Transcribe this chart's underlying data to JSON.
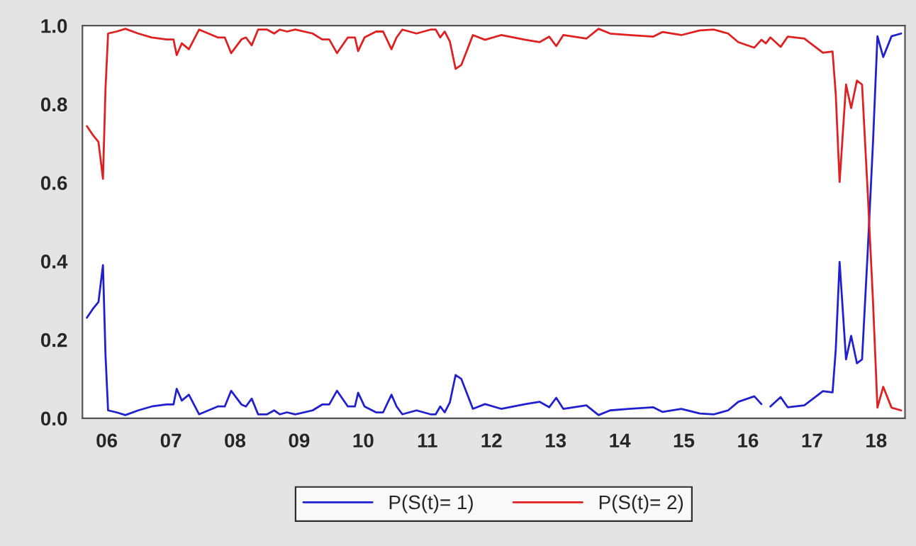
{
  "chart_data": {
    "type": "line",
    "x": [
      2005.69,
      2005.78,
      2005.87,
      2005.94,
      2005.98,
      2006.02,
      2006.15,
      2006.29,
      2006.49,
      2006.7,
      2006.93,
      2007.04,
      2007.09,
      2007.17,
      2007.28,
      2007.44,
      2007.73,
      2007.84,
      2007.94,
      2008.1,
      2008.17,
      2008.26,
      2008.36,
      2008.5,
      2008.61,
      2008.7,
      2008.81,
      2008.94,
      2009.21,
      2009.36,
      2009.47,
      2009.59,
      2009.76,
      2009.87,
      2009.92,
      2010.02,
      2010.2,
      2010.31,
      2010.44,
      2010.52,
      2010.61,
      2010.83,
      2011.05,
      2011.13,
      2011.2,
      2011.27,
      2011.35,
      2011.44,
      2011.53,
      2011.71,
      2011.9,
      2012.15,
      2012.53,
      2012.75,
      2012.9,
      2013.01,
      2013.12,
      2013.48,
      2013.67,
      2013.85,
      2014.14,
      2014.52,
      2014.67,
      2014.96,
      2015.25,
      2015.47,
      2015.69,
      2015.85,
      2016.1,
      2016.21,
      2016.28,
      2016.35,
      2016.51,
      2016.62,
      2016.88,
      2017.17,
      2017.32,
      2017.37,
      2017.43,
      2017.53,
      2017.61,
      2017.7,
      2017.78,
      2017.87,
      2017.95,
      2018.02,
      2018.11,
      2018.24,
      2018.39
    ],
    "series": [
      {
        "name": "P(S(t)= 1)",
        "color": "#2020d0",
        "values": [
          0.256,
          0.278,
          0.296,
          0.39,
          0.16,
          0.02,
          0.015,
          0.008,
          0.02,
          0.03,
          0.035,
          0.035,
          0.075,
          0.045,
          0.06,
          0.01,
          0.03,
          0.03,
          0.07,
          0.035,
          0.03,
          0.05,
          0.01,
          0.01,
          0.02,
          0.01,
          0.015,
          0.01,
          0.02,
          0.035,
          0.035,
          0.07,
          0.03,
          0.03,
          0.065,
          0.03,
          0.015,
          0.015,
          0.06,
          0.03,
          0.01,
          0.02,
          0.01,
          0.01,
          0.03,
          0.015,
          0.04,
          0.11,
          0.1,
          0.024,
          0.036,
          0.024,
          0.036,
          0.042,
          0.028,
          0.052,
          0.024,
          0.033,
          0.008,
          0.02,
          0.024,
          0.028,
          0.016,
          0.024,
          0.012,
          0.01,
          0.02,
          0.042,
          0.056,
          0.036,
          null,
          0.03,
          0.054,
          0.028,
          0.033,
          0.069,
          0.066,
          0.175,
          0.398,
          0.15,
          0.21,
          0.14,
          0.15,
          0.43,
          0.7,
          0.973,
          0.92,
          0.973,
          0.98
        ]
      },
      {
        "name": "P(S(t)= 2)",
        "color": "#e02020",
        "values": [
          0.744,
          0.722,
          0.704,
          0.61,
          0.84,
          0.98,
          0.985,
          0.992,
          0.98,
          0.97,
          0.965,
          0.965,
          0.925,
          0.955,
          0.94,
          0.99,
          0.97,
          0.97,
          0.93,
          0.965,
          0.97,
          0.95,
          0.99,
          0.99,
          0.98,
          0.99,
          0.985,
          0.99,
          0.98,
          0.965,
          0.965,
          0.93,
          0.97,
          0.97,
          0.935,
          0.97,
          0.985,
          0.985,
          0.94,
          0.97,
          0.99,
          0.98,
          0.99,
          0.99,
          0.97,
          0.985,
          0.96,
          0.89,
          0.9,
          0.976,
          0.964,
          0.976,
          0.964,
          0.958,
          0.972,
          0.948,
          0.976,
          0.967,
          0.992,
          0.98,
          0.976,
          0.972,
          0.984,
          0.976,
          0.988,
          0.99,
          0.98,
          0.958,
          0.944,
          0.964,
          0.955,
          0.97,
          0.946,
          0.972,
          0.967,
          0.931,
          0.934,
          0.825,
          0.602,
          0.85,
          0.79,
          0.86,
          0.85,
          0.57,
          0.3,
          0.027,
          0.08,
          0.027,
          0.02
        ]
      }
    ],
    "xlim": [
      2005.62,
      2018.45
    ],
    "xticks": [
      {
        "value": 2006,
        "label": "06"
      },
      {
        "value": 2007,
        "label": "07"
      },
      {
        "value": 2008,
        "label": "08"
      },
      {
        "value": 2009,
        "label": "09"
      },
      {
        "value": 2010,
        "label": "10"
      },
      {
        "value": 2011,
        "label": "11"
      },
      {
        "value": 2012,
        "label": "12"
      },
      {
        "value": 2013,
        "label": "13"
      },
      {
        "value": 2014,
        "label": "14"
      },
      {
        "value": 2015,
        "label": "15"
      },
      {
        "value": 2016,
        "label": "16"
      },
      {
        "value": 2017,
        "label": "17"
      },
      {
        "value": 2018,
        "label": "18"
      }
    ],
    "ylim": [
      0,
      1
    ],
    "yticks": [
      {
        "value": 0,
        "label": "0.0"
      },
      {
        "value": 0.2,
        "label": "0.2"
      },
      {
        "value": 0.4,
        "label": "0.4"
      },
      {
        "value": 0.6,
        "label": "0.6"
      },
      {
        "value": 0.8,
        "label": "0.8"
      },
      {
        "value": 1,
        "label": "1.0"
      }
    ],
    "legend": "bottom",
    "grid": false,
    "marker": "none",
    "line_style": "solid"
  }
}
